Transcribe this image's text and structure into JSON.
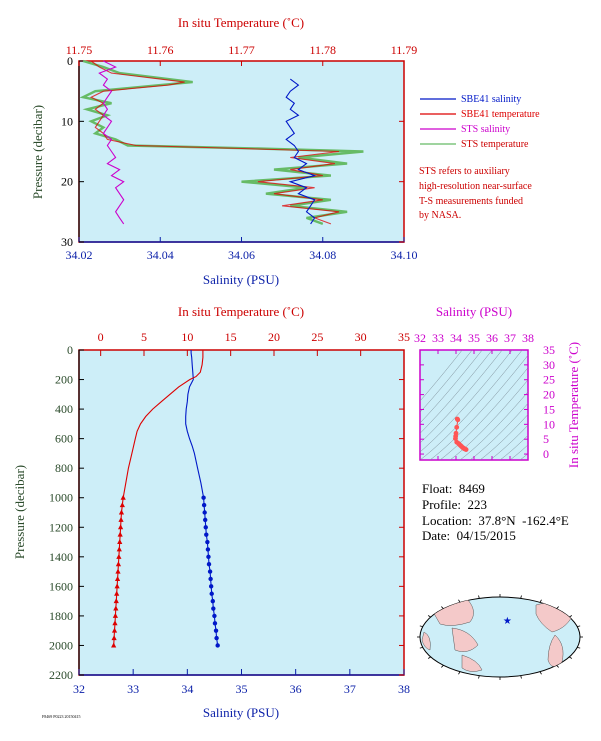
{
  "colors": {
    "plot_bg": "#cdeef8",
    "salinity_axis": "#0a1fa8",
    "temperature_axis": "#cc0000",
    "pressure_axis": "#2a4a2a",
    "ts_axis": "#cc00cc",
    "sbe_salinity": "#0018c8",
    "sbe_temperature": "#dd0000",
    "sts_salinity": "#cc00cc",
    "sts_temperature": "#66bb66",
    "note": "#cc0000"
  },
  "note": {
    "lines": [
      "STS refers to auxiliary",
      "high-resolution near-surface",
      "T-S measurements funded",
      "by NASA."
    ]
  },
  "info": {
    "float": "Float:  8469",
    "profile": "Profile:  223",
    "location": "Location:  37.8°N  -162.4°E",
    "date": "Date:  04/15/2015"
  },
  "footer_tag": "F8469 P0223 20150415",
  "chart_data": [
    {
      "id": "near-surface",
      "type": "line",
      "xlabel_bottom": "Salinity (PSU)",
      "xlabel_top": "In situ Temperature (˚C)",
      "ylabel": "Pressure (decibar)",
      "xlim_bottom": [
        34.02,
        34.1
      ],
      "xticks_bottom": [
        "34.02",
        "34.04",
        "34.06",
        "34.08",
        "34.10"
      ],
      "xlim_top": [
        11.75,
        11.79
      ],
      "xticks_top": [
        "11.75",
        "11.76",
        "11.77",
        "11.78",
        "11.79"
      ],
      "ylim": [
        0,
        30
      ],
      "yticks": [
        "0",
        "10",
        "20",
        "30"
      ],
      "legend": {
        "position": "right",
        "entries": [
          {
            "label": "SBE41 salinity",
            "color": "sbe_salinity"
          },
          {
            "label": "SBE41 temperature",
            "color": "sbe_temperature"
          },
          {
            "label": "STS salinity",
            "color": "sts_salinity"
          },
          {
            "label": "STS temperature",
            "color": "sts_temperature"
          }
        ]
      },
      "series": [
        {
          "id": "sbe_salinity",
          "axis": "bottom",
          "color": "sbe_salinity",
          "p": [
            3,
            4,
            5,
            6,
            7,
            8,
            9,
            10,
            11,
            12,
            13,
            14,
            15,
            16,
            17,
            18,
            19,
            20,
            21,
            22,
            23,
            24,
            25,
            26,
            27
          ],
          "x": [
            34.072,
            34.074,
            34.072,
            34.071,
            34.073,
            34.072,
            34.074,
            34.071,
            34.072,
            34.073,
            34.071,
            34.073,
            34.074,
            34.073,
            34.076,
            34.074,
            34.078,
            34.072,
            34.076,
            34.074,
            34.078,
            34.077,
            34.076,
            34.078,
            34.077
          ]
        },
        {
          "id": "sts_salinity",
          "axis": "bottom",
          "color": "sts_salinity",
          "p": [
            0,
            1,
            2,
            3,
            4,
            5,
            6,
            7,
            8,
            9,
            10,
            11,
            12,
            13,
            14,
            15,
            16,
            17,
            18,
            19,
            20,
            21,
            22,
            23,
            24,
            25,
            26,
            27
          ],
          "x": [
            34.026,
            34.029,
            34.025,
            34.027,
            34.026,
            34.028,
            34.027,
            34.026,
            34.027,
            34.026,
            34.028,
            34.027,
            34.026,
            34.028,
            34.027,
            34.028,
            34.029,
            34.027,
            34.03,
            34.028,
            34.031,
            34.029,
            34.03,
            34.031,
            34.03,
            34.029,
            34.03,
            34.031
          ]
        },
        {
          "id": "sbe_temperature",
          "axis": "top",
          "color": "sbe_temperature",
          "p": [
            0,
            1,
            2,
            3,
            3.5,
            4,
            5,
            6,
            7,
            8,
            9,
            10,
            11,
            12,
            13,
            14,
            14.5,
            15,
            16,
            17,
            18,
            19,
            20,
            21,
            22,
            23,
            24,
            25,
            26,
            27
          ],
          "x": [
            11.7515,
            11.7525,
            11.754,
            11.76,
            11.763,
            11.761,
            11.753,
            11.7515,
            11.753,
            11.752,
            11.753,
            11.7525,
            11.752,
            11.753,
            11.7535,
            11.757,
            11.77,
            11.782,
            11.776,
            11.7815,
            11.776,
            11.78,
            11.772,
            11.779,
            11.774,
            11.78,
            11.775,
            11.782,
            11.779,
            11.781
          ]
        },
        {
          "id": "sts_temperature",
          "axis": "top",
          "color": "sts_temperature",
          "p": [
            0,
            1,
            2,
            3,
            3.5,
            4,
            5,
            6,
            7,
            8,
            9,
            10,
            11,
            12,
            13,
            14,
            14.5,
            15,
            16,
            17,
            18,
            19,
            20,
            21,
            22,
            23,
            24,
            25,
            26,
            27
          ],
          "x": [
            11.7505,
            11.753,
            11.755,
            11.761,
            11.764,
            11.76,
            11.752,
            11.7505,
            11.754,
            11.751,
            11.7535,
            11.7515,
            11.753,
            11.752,
            11.7545,
            11.756,
            11.772,
            11.785,
            11.777,
            11.783,
            11.774,
            11.781,
            11.77,
            11.778,
            11.773,
            11.781,
            11.776,
            11.783,
            11.778,
            11.78
          ]
        }
      ]
    },
    {
      "id": "full-profile",
      "type": "line",
      "xlabel_bottom": "Salinity (PSU)",
      "xlabel_top": "In situ Temperature (˚C)",
      "ylabel": "Pressure (decibar)",
      "xlim_bottom": [
        32,
        38
      ],
      "xticks_bottom": [
        "32",
        "33",
        "34",
        "35",
        "36",
        "37",
        "38"
      ],
      "xlim_top": [
        -2.5,
        35
      ],
      "xticks_top": [
        "0",
        "5",
        "10",
        "15",
        "20",
        "25",
        "30",
        "35"
      ],
      "ylim": [
        0,
        2200
      ],
      "yticks": [
        "0",
        "200",
        "400",
        "600",
        "800",
        "1000",
        "1200",
        "1400",
        "1600",
        "1800",
        "2000",
        "2200"
      ],
      "series": [
        {
          "id": "salinity",
          "axis": "bottom",
          "color": "sbe_salinity",
          "p": [
            0,
            20,
            50,
            100,
            150,
            200,
            250,
            300,
            350,
            400,
            450,
            500,
            550,
            600,
            650,
            700,
            800,
            900,
            1000
          ],
          "x": [
            34.07,
            34.07,
            34.08,
            34.09,
            34.1,
            34.11,
            34.04,
            34.01,
            34.0,
            33.98,
            33.97,
            33.97,
            34.0,
            34.04,
            34.09,
            34.13,
            34.19,
            34.25,
            34.3
          ],
          "marker_p": [
            1000,
            1050,
            1100,
            1150,
            1200,
            1250,
            1300,
            1350,
            1400,
            1450,
            1500,
            1550,
            1600,
            1650,
            1700,
            1750,
            1800,
            1850,
            1900,
            1950,
            2000
          ],
          "marker_x": [
            34.3,
            34.31,
            34.32,
            34.33,
            34.34,
            34.35,
            34.37,
            34.38,
            34.39,
            34.4,
            34.42,
            34.43,
            34.44,
            34.45,
            34.47,
            34.48,
            34.5,
            34.51,
            34.53,
            34.54,
            34.56
          ],
          "marker": "dot"
        },
        {
          "id": "temperature",
          "axis": "top",
          "color": "sbe_temperature",
          "p": [
            0,
            20,
            50,
            100,
            150,
            180,
            200,
            250,
            300,
            350,
            400,
            450,
            500,
            550,
            600,
            700,
            800,
            900,
            1000
          ],
          "x": [
            11.8,
            11.8,
            11.8,
            11.7,
            11.5,
            11.0,
            10.3,
            9.0,
            8.0,
            7.0,
            6.0,
            5.2,
            4.6,
            4.2,
            4.0,
            3.6,
            3.2,
            2.9,
            2.6
          ],
          "marker_p": [
            1000,
            1050,
            1100,
            1150,
            1200,
            1250,
            1300,
            1350,
            1400,
            1450,
            1500,
            1550,
            1600,
            1650,
            1700,
            1750,
            1800,
            1850,
            1900,
            1950,
            2000
          ],
          "marker_x": [
            2.6,
            2.5,
            2.4,
            2.35,
            2.3,
            2.25,
            2.2,
            2.15,
            2.1,
            2.05,
            2.0,
            1.95,
            1.9,
            1.85,
            1.8,
            1.75,
            1.7,
            1.65,
            1.6,
            1.55,
            1.5
          ],
          "marker": "triangle"
        }
      ]
    },
    {
      "id": "ts-diagram",
      "type": "scatter",
      "xlabel": "Salinity (PSU)",
      "ylabel": "In situ Temperature (˚C)",
      "xlim": [
        32,
        38
      ],
      "xticks": [
        "32",
        "33",
        "34",
        "35",
        "36",
        "37",
        "38"
      ],
      "ylim": [
        -2,
        35
      ],
      "yticks": [
        "0",
        "5",
        "10",
        "15",
        "20",
        "25",
        "30",
        "35"
      ],
      "points": {
        "s": [
          34.07,
          34.1,
          34.04,
          34.0,
          33.98,
          33.97,
          34.04,
          34.13,
          34.19,
          34.25,
          34.3,
          34.35,
          34.4,
          34.45,
          34.5,
          34.56
        ],
        "t": [
          11.8,
          11.5,
          9.0,
          7.0,
          6.0,
          5.2,
          4.0,
          3.6,
          3.2,
          2.9,
          2.6,
          2.3,
          2.05,
          1.85,
          1.7,
          1.5
        ]
      }
    }
  ],
  "map": {
    "marker_lat": 37.8,
    "marker_lon": -162.4
  }
}
